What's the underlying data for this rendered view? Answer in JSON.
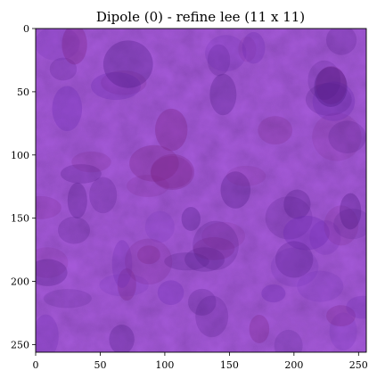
{
  "title": "Dipole (0) - refine lee (11 x 11)",
  "image": {
    "description_colors": {
      "base": "#5a1f9c",
      "dark_blob": "#4a1680",
      "light_blob": "#6c2ab3",
      "magenta_tint": "#7a2386"
    },
    "extent": {
      "x": [
        0,
        256
      ],
      "y": [
        256,
        0
      ]
    }
  },
  "axes": {
    "x_ticks": [
      "0",
      "50",
      "100",
      "150",
      "200",
      "250"
    ],
    "y_ticks": [
      "0",
      "50",
      "100",
      "150",
      "200",
      "250"
    ],
    "x_tick_values": [
      0,
      50,
      100,
      150,
      200,
      250
    ],
    "y_tick_values": [
      0,
      50,
      100,
      150,
      200,
      250
    ]
  }
}
